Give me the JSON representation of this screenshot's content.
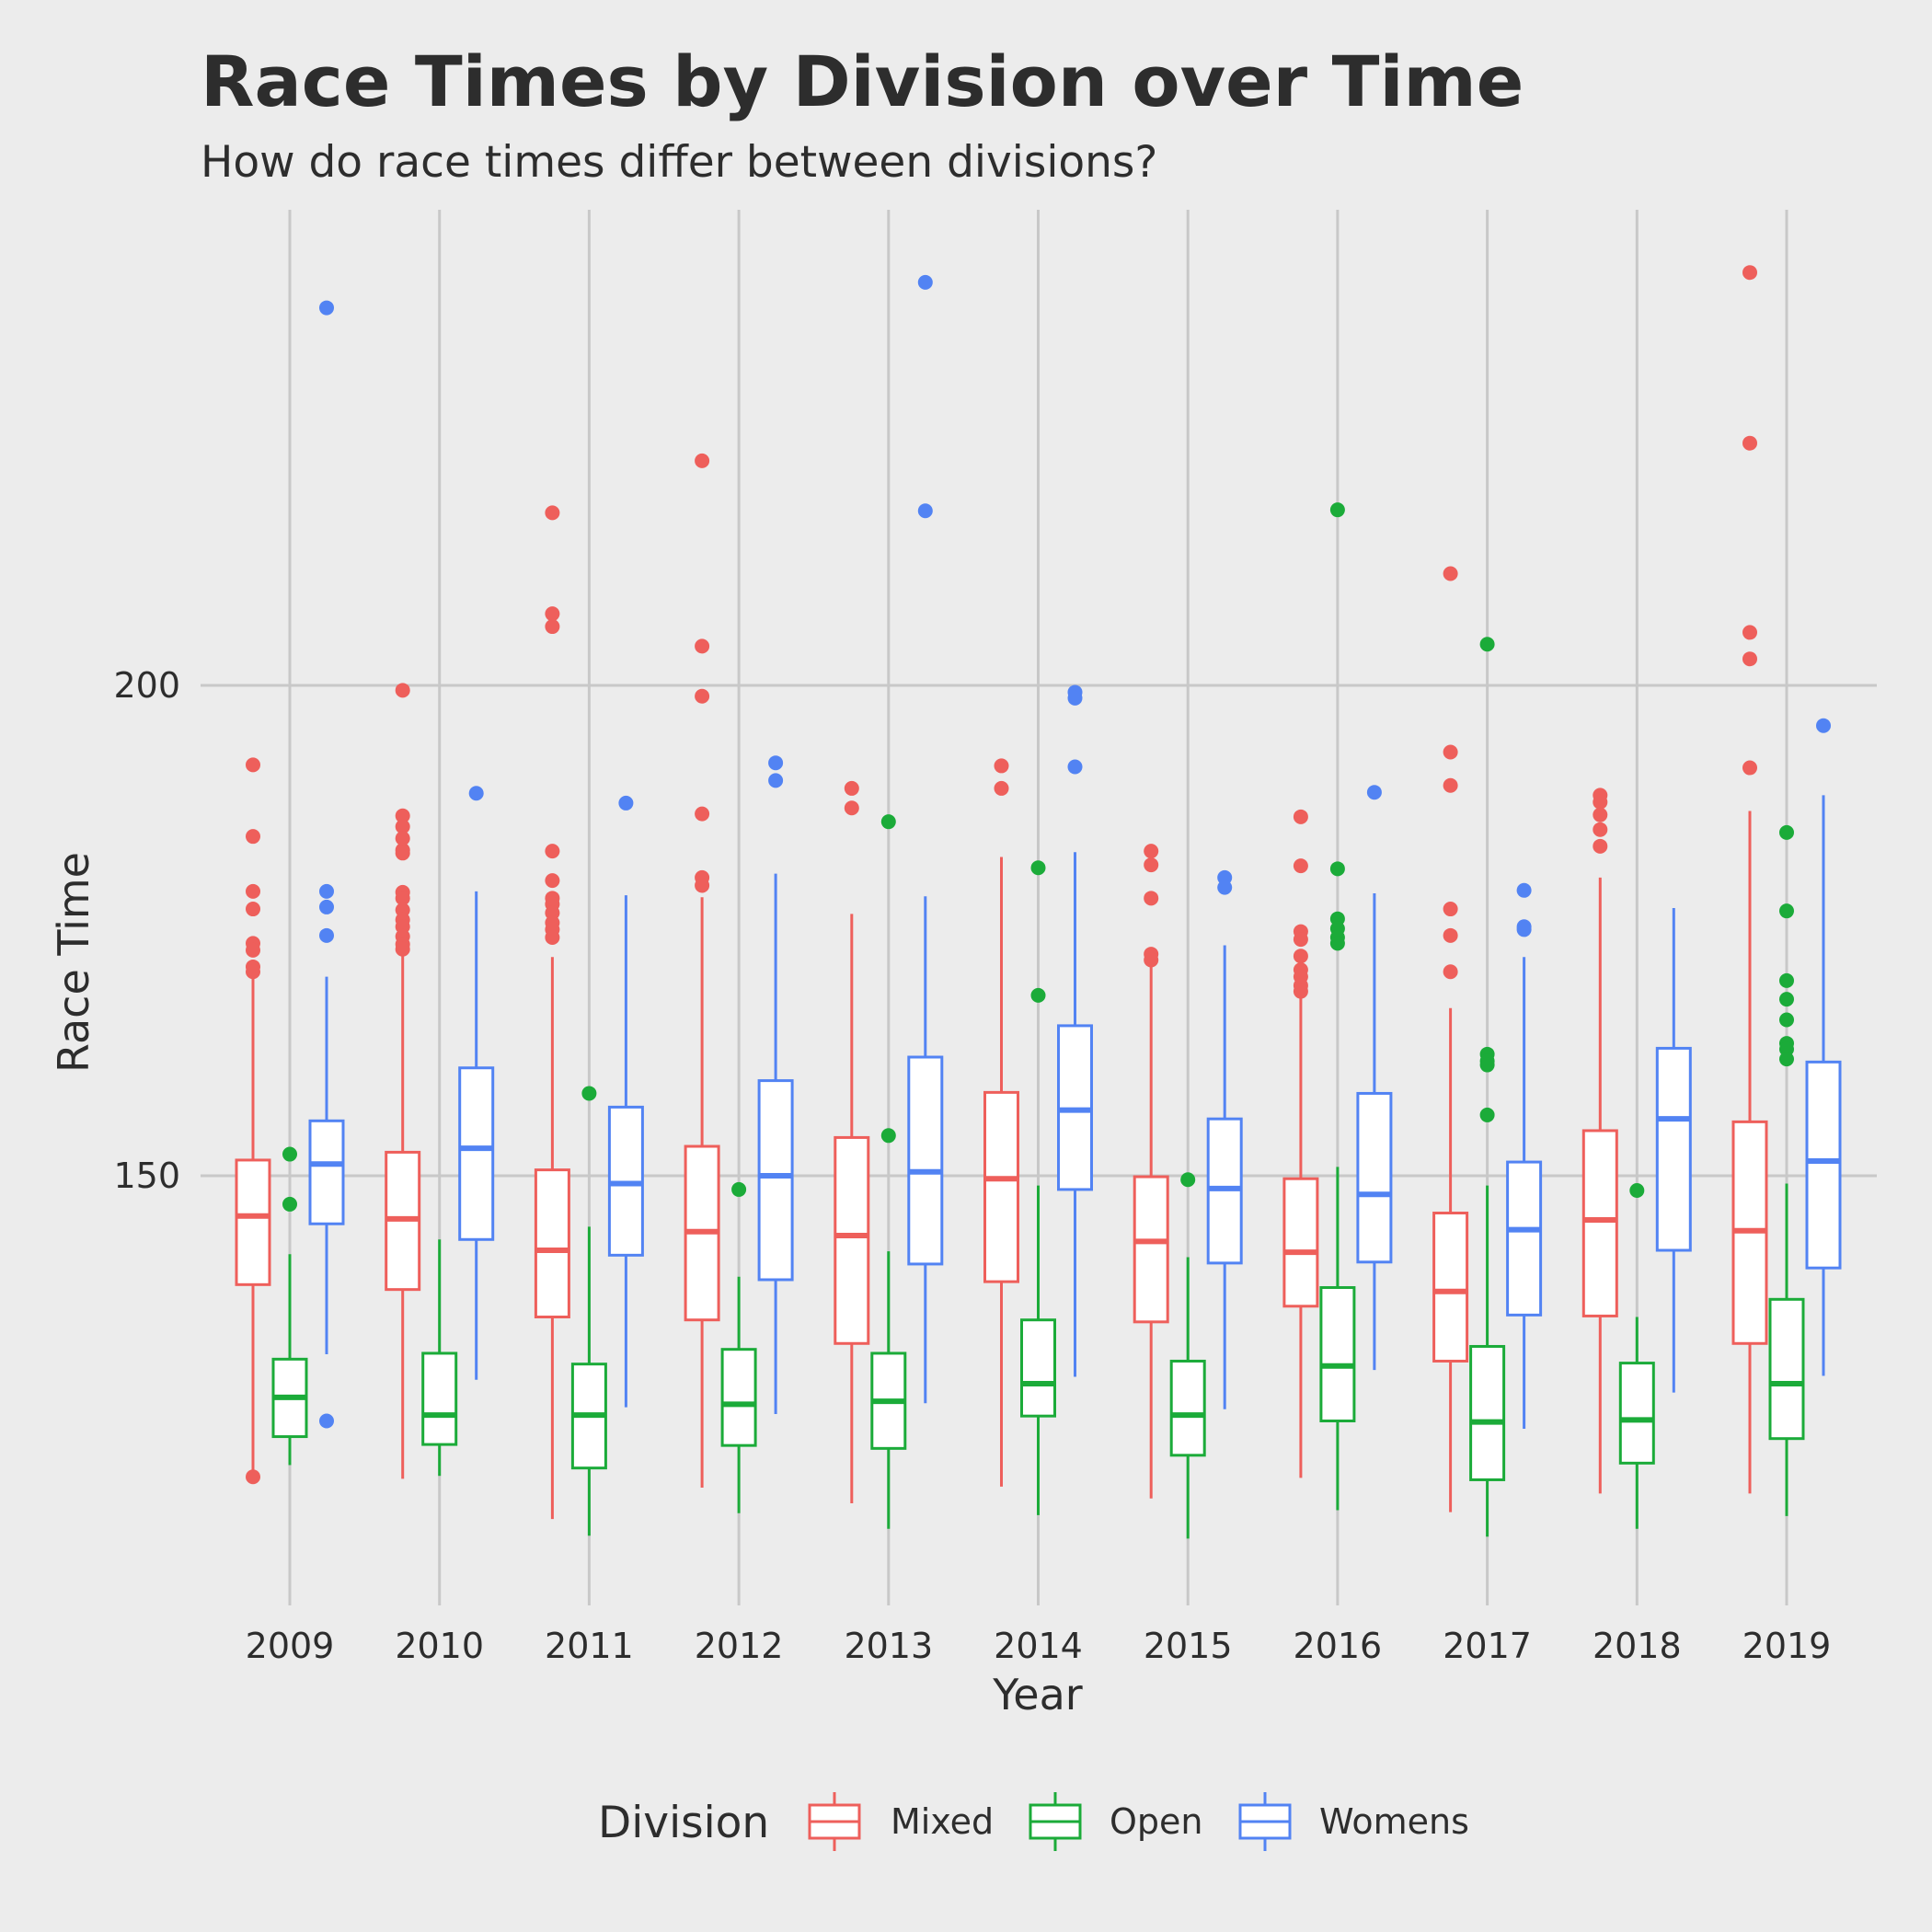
{
  "chart_data": {
    "type": "boxplot",
    "title": "Race Times by Division over Time",
    "subtitle": "How do race times differ between divisions?",
    "xlabel": "Year",
    "ylabel": "Race Time",
    "categories": [
      "2009",
      "2010",
      "2011",
      "2012",
      "2013",
      "2014",
      "2015",
      "2016",
      "2017",
      "2018",
      "2019"
    ],
    "ylim": [
      106,
      261
    ],
    "y_ticks": [
      150,
      200
    ],
    "grid": true,
    "legend": {
      "title": "Division",
      "position": "bottom"
    },
    "series": [
      {
        "name": "Mixed",
        "color": "#ee5f5b",
        "boxes": [
          {
            "q1": 138.9,
            "median": 145.9,
            "q3": 151.6,
            "low": 120,
            "high": 170.6,
            "outliers": [
              191.9,
              184.6,
              179.0,
              177.2,
              173.7,
              173.0,
              171.3,
              170.8,
              119.3
            ]
          },
          {
            "q1": 138.4,
            "median": 145.6,
            "q3": 152.4,
            "low": 119.1,
            "high": 174,
            "outliers": [
              199.5,
              186.7,
              185.6,
              184.4,
              183.2,
              182.9,
              178.9,
              178.3,
              177.1,
              176.1,
              175.4,
              174.4,
              173.6,
              173.1
            ]
          },
          {
            "q1": 135.6,
            "median": 142.4,
            "q3": 150.6,
            "low": 115.0,
            "high": 172.3,
            "outliers": [
              217.6,
              207.3,
              206.0,
              183.1,
              180.1,
              178.3,
              177.7,
              176.8,
              175.8,
              175.1,
              174.3
            ]
          },
          {
            "q1": 135.3,
            "median": 144.3,
            "q3": 153.0,
            "low": 118.2,
            "high": 178.4,
            "outliers": [
              222.9,
              204.0,
              198.9,
              186.9,
              180.4,
              179.6
            ]
          },
          {
            "q1": 132.9,
            "median": 143.9,
            "q3": 153.9,
            "low": 116.6,
            "high": 176.7,
            "outliers": [
              189.5,
              187.5
            ]
          },
          {
            "q1": 139.2,
            "median": 149.7,
            "q3": 158.5,
            "low": 118.3,
            "high": 182.5,
            "outliers": [
              191.8,
              189.5
            ]
          },
          {
            "q1": 135.1,
            "median": 143.3,
            "q3": 149.9,
            "low": 117.1,
            "high": 171.3,
            "outliers": [
              183.1,
              181.7,
              178.3,
              172.6,
              172.0
            ]
          },
          {
            "q1": 136.7,
            "median": 142.2,
            "q3": 149.7,
            "low": 119.2,
            "high": 168.1,
            "outliers": [
              186.6,
              181.6,
              174.9,
              174.1,
              172.4,
              171.0,
              170.3,
              169.4,
              168.8
            ]
          },
          {
            "q1": 131.1,
            "median": 138.2,
            "q3": 146.2,
            "low": 115.7,
            "high": 167.1,
            "outliers": [
              211.4,
              193.2,
              189.8,
              177.2,
              174.5,
              170.8
            ]
          },
          {
            "q1": 135.7,
            "median": 145.5,
            "q3": 154.6,
            "low": 117.6,
            "high": 180.4,
            "outliers": [
              188.8,
              188.1,
              186.8,
              185.3,
              183.6
            ]
          },
          {
            "q1": 132.9,
            "median": 144.4,
            "q3": 155.5,
            "low": 117.6,
            "high": 187.2,
            "outliers": [
              242.1,
              224.7,
              205.4,
              202.7,
              191.6
            ]
          }
        ]
      },
      {
        "name": "Open",
        "color": "#1bab39",
        "boxes": [
          {
            "q1": 123.4,
            "median": 127.4,
            "q3": 131.3,
            "low": 120.5,
            "high": 142.0,
            "outliers": [
              152.2,
              147.1
            ]
          },
          {
            "q1": 122.6,
            "median": 125.6,
            "q3": 131.9,
            "low": 119.4,
            "high": 143.5,
            "outliers": []
          },
          {
            "q1": 120.2,
            "median": 125.6,
            "q3": 130.8,
            "low": 113.3,
            "high": 144.8,
            "outliers": [
              158.4
            ]
          },
          {
            "q1": 122.5,
            "median": 126.7,
            "q3": 132.3,
            "low": 115.6,
            "high": 139.7,
            "outliers": [
              148.6
            ]
          },
          {
            "q1": 122.2,
            "median": 127.0,
            "q3": 131.9,
            "low": 114.0,
            "high": 142.3,
            "outliers": [
              186.1,
              154.1
            ]
          },
          {
            "q1": 125.5,
            "median": 128.8,
            "q3": 135.3,
            "low": 115.4,
            "high": 149.0,
            "outliers": [
              181.4,
              168.4
            ]
          },
          {
            "q1": 121.5,
            "median": 125.6,
            "q3": 131.1,
            "low": 113.0,
            "high": 141.7,
            "outliers": [
              149.6
            ]
          },
          {
            "q1": 125.0,
            "median": 130.6,
            "q3": 138.6,
            "low": 115.9,
            "high": 150.9,
            "outliers": [
              217.9,
              181.3,
              176.2,
              175.2,
              174.3,
              173.7
            ]
          },
          {
            "q1": 119.0,
            "median": 124.9,
            "q3": 132.6,
            "low": 113.2,
            "high": 149.0,
            "outliers": [
              204.2,
              162.4,
              161.7,
              161.3,
              156.2
            ]
          },
          {
            "q1": 120.7,
            "median": 125.1,
            "q3": 130.9,
            "low": 114.0,
            "high": 135.6,
            "outliers": [
              148.5
            ]
          },
          {
            "q1": 123.2,
            "median": 128.8,
            "q3": 137.4,
            "low": 115.3,
            "high": 149.2,
            "outliers": [
              185.0,
              177.0,
              169.9,
              168.0,
              165.9,
              163.5,
              162.9,
              161.9
            ]
          }
        ]
      },
      {
        "name": "Womens",
        "color": "#5283f3",
        "boxes": [
          {
            "q1": 145.1,
            "median": 151.2,
            "q3": 155.6,
            "low": 131.8,
            "high": 170.3,
            "outliers": [
              238.5,
              179.0,
              177.4,
              174.5,
              125.0
            ]
          },
          {
            "q1": 143.5,
            "median": 152.8,
            "q3": 161.0,
            "low": 129.2,
            "high": 179.0,
            "outliers": [
              189.0
            ]
          },
          {
            "q1": 141.9,
            "median": 149.2,
            "q3": 157.0,
            "low": 126.4,
            "high": 178.6,
            "outliers": [
              188.0
            ]
          },
          {
            "q1": 139.4,
            "median": 150.0,
            "q3": 159.7,
            "low": 125.7,
            "high": 180.8,
            "outliers": [
              192.1,
              190.3
            ]
          },
          {
            "q1": 141.0,
            "median": 150.4,
            "q3": 162.1,
            "low": 126.8,
            "high": 178.5,
            "outliers": [
              241.1,
              217.8
            ]
          },
          {
            "q1": 148.6,
            "median": 156.7,
            "q3": 165.3,
            "low": 129.5,
            "high": 183.0,
            "outliers": [
              199.3,
              198.7,
              191.7
            ]
          },
          {
            "q1": 141.1,
            "median": 148.7,
            "q3": 155.8,
            "low": 126.2,
            "high": 173.5,
            "outliers": [
              180.4,
              179.4
            ]
          },
          {
            "q1": 141.2,
            "median": 148.1,
            "q3": 158.4,
            "low": 130.2,
            "high": 178.8,
            "outliers": [
              189.1
            ]
          },
          {
            "q1": 135.8,
            "median": 144.5,
            "q3": 151.4,
            "low": 124.2,
            "high": 172.3,
            "outliers": [
              179.1,
              175.4,
              175.1
            ]
          },
          {
            "q1": 142.4,
            "median": 155.8,
            "q3": 163.0,
            "low": 127.9,
            "high": 177.3,
            "outliers": []
          },
          {
            "q1": 140.6,
            "median": 151.5,
            "q3": 161.6,
            "low": 129.6,
            "high": 188.8,
            "outliers": [
              195.9
            ]
          }
        ]
      }
    ]
  }
}
